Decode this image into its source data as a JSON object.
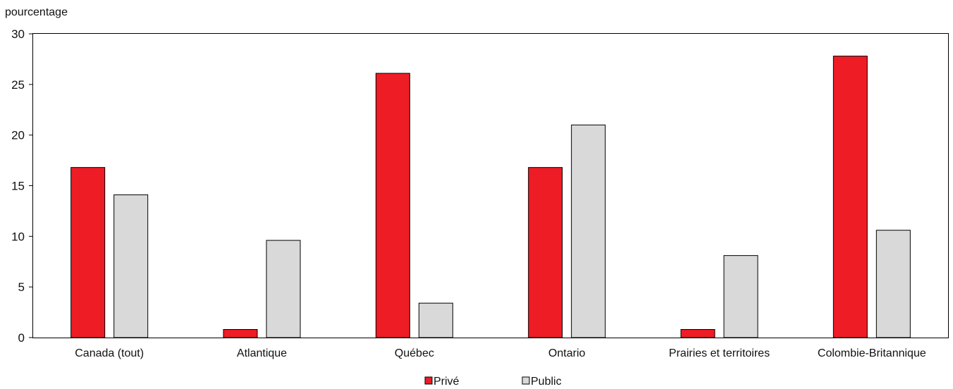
{
  "chart_data": {
    "type": "bar",
    "ylabel": "pourcentage",
    "xlabel": "",
    "ylim": [
      0,
      30
    ],
    "yticks": [
      0,
      5,
      10,
      15,
      20,
      25,
      30
    ],
    "grid": false,
    "legend_position": "bottom-center",
    "categories": [
      "Canada (tout)",
      "Atlantique",
      "Québec",
      "Ontario",
      "Prairies et territoires",
      "Colombie-Britannique"
    ],
    "series": [
      {
        "name": "Privé",
        "color": "#ee1c25",
        "values": [
          16.8,
          0.8,
          26.1,
          16.8,
          0.8,
          27.8
        ]
      },
      {
        "name": "Public",
        "color": "#d9d9d9",
        "values": [
          14.1,
          9.6,
          3.4,
          21.0,
          8.1,
          10.6
        ]
      }
    ]
  }
}
